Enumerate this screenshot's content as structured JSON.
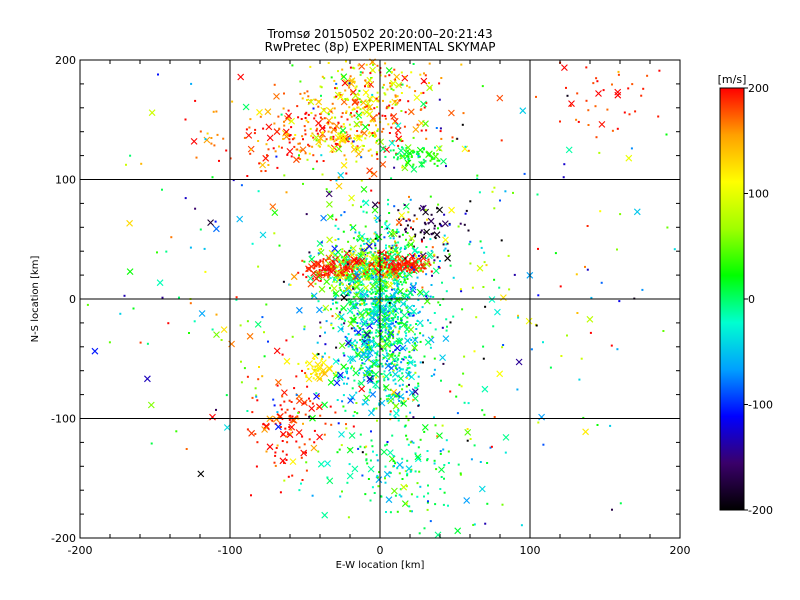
{
  "chart_data": {
    "type": "scatter",
    "title": "Tromsø 20150502 20:20:00–20:21:43",
    "subtitle": "RwPretec (8p) EXPERIMENTAL SKYMAP",
    "xlabel": "E-W location [km]",
    "ylabel": "N-S location [km]",
    "xlim": [
      -200,
      200
    ],
    "ylim": [
      -200,
      200
    ],
    "x_ticks": [
      -200,
      -100,
      0,
      100,
      200
    ],
    "y_ticks": [
      -200,
      -100,
      0,
      100,
      200
    ],
    "grid": true,
    "colorbar": {
      "label": "[m/s]",
      "range": [
        -200,
        200
      ],
      "ticks": [
        200,
        100,
        0,
        -100,
        -200
      ],
      "colormap": [
        "#000000",
        "#3a006a",
        "#0000ff",
        "#00a0ff",
        "#00ffd0",
        "#00ff00",
        "#a0ff00",
        "#ffff00",
        "#ffa000",
        "#ff0000"
      ]
    },
    "marker_types": [
      "dot",
      "x"
    ],
    "clusters": [
      {
        "x": 0,
        "y": -20,
        "sx": 15,
        "sy": 35,
        "n": 900,
        "v": -20,
        "vs": 40
      },
      {
        "x": -10,
        "y": 25,
        "sx": 15,
        "sy": 10,
        "n": 350,
        "v": 40,
        "vs": 50
      },
      {
        "x": -30,
        "y": 25,
        "sx": 10,
        "sy": 5,
        "n": 120,
        "v": 190,
        "vs": 15
      },
      {
        "x": 15,
        "y": 28,
        "sx": 10,
        "sy": 4,
        "n": 120,
        "v": 195,
        "vs": 10
      },
      {
        "x": -40,
        "y": 140,
        "sx": 40,
        "sy": 15,
        "n": 250,
        "v": 180,
        "vs": 30
      },
      {
        "x": -20,
        "y": 150,
        "sx": 15,
        "sy": 25,
        "n": 150,
        "v": 110,
        "vs": 40
      },
      {
        "x": 25,
        "y": 120,
        "sx": 10,
        "sy": 5,
        "n": 80,
        "v": 20,
        "vs": 20
      },
      {
        "x": 0,
        "y": 180,
        "sx": 20,
        "sy": 15,
        "n": 150,
        "v": 150,
        "vs": 60
      },
      {
        "x": -60,
        "y": -100,
        "sx": 12,
        "sy": 25,
        "n": 120,
        "v": 190,
        "vs": 20
      },
      {
        "x": 15,
        "y": -140,
        "sx": 25,
        "sy": 25,
        "n": 150,
        "v": 0,
        "vs": 40
      },
      {
        "x": 30,
        "y": 60,
        "sx": 15,
        "sy": 10,
        "n": 60,
        "v": -180,
        "vs": 20
      },
      {
        "x": 10,
        "y": 50,
        "sx": 20,
        "sy": 20,
        "n": 100,
        "v": 30,
        "vs": 100
      },
      {
        "x": -40,
        "y": -60,
        "sx": 5,
        "sy": 5,
        "n": 40,
        "v": 120,
        "vs": 10
      },
      {
        "x": 0,
        "y": 0,
        "sx": 90,
        "sy": 90,
        "n": 500,
        "v": 0,
        "vs": 110
      },
      {
        "x": 150,
        "y": 170,
        "sx": 20,
        "sy": 15,
        "n": 40,
        "v": 190,
        "vs": 20
      }
    ]
  }
}
